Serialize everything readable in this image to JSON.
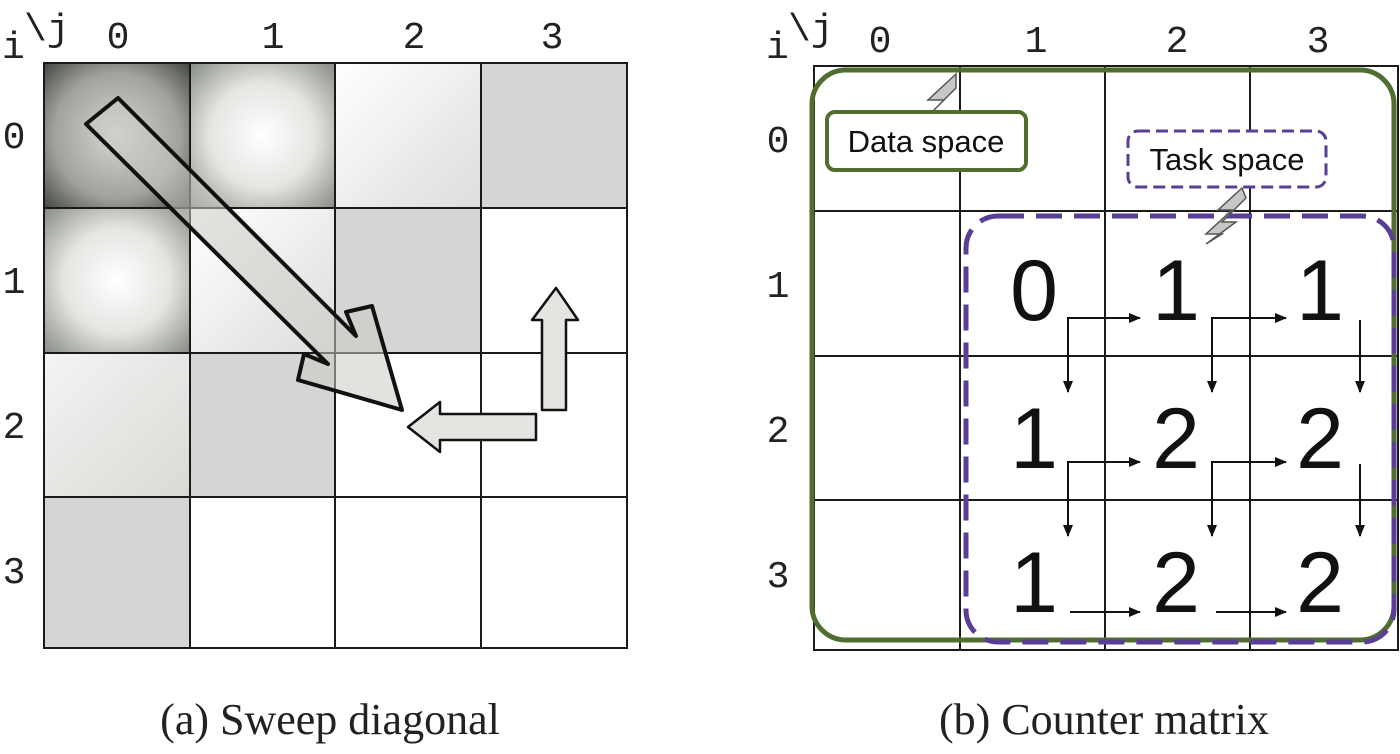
{
  "left_panel": {
    "corner_i": "i",
    "corner_j": "\\j",
    "col_labels": [
      "0",
      "1",
      "2",
      "3"
    ],
    "row_labels": [
      "0",
      "1",
      "2",
      "3"
    ],
    "caption": "(a) Sweep diagonal"
  },
  "right_panel": {
    "corner_i": "i",
    "corner_j": "\\j",
    "col_labels": [
      "0",
      "1",
      "2",
      "3"
    ],
    "row_labels": [
      "0",
      "1",
      "2",
      "3"
    ],
    "data_space_label": "Data space",
    "task_space_label": "Task space",
    "counters": [
      [
        "0",
        "1",
        "1"
      ],
      [
        "1",
        "2",
        "2"
      ],
      [
        "1",
        "2",
        "2"
      ]
    ],
    "caption": "(b) Counter matrix"
  },
  "colors": {
    "data_space": "#4f6e2f",
    "task_space": "#5a3e96",
    "grid": "#1a1a1a",
    "cell_gray": "#d4d6d3"
  }
}
